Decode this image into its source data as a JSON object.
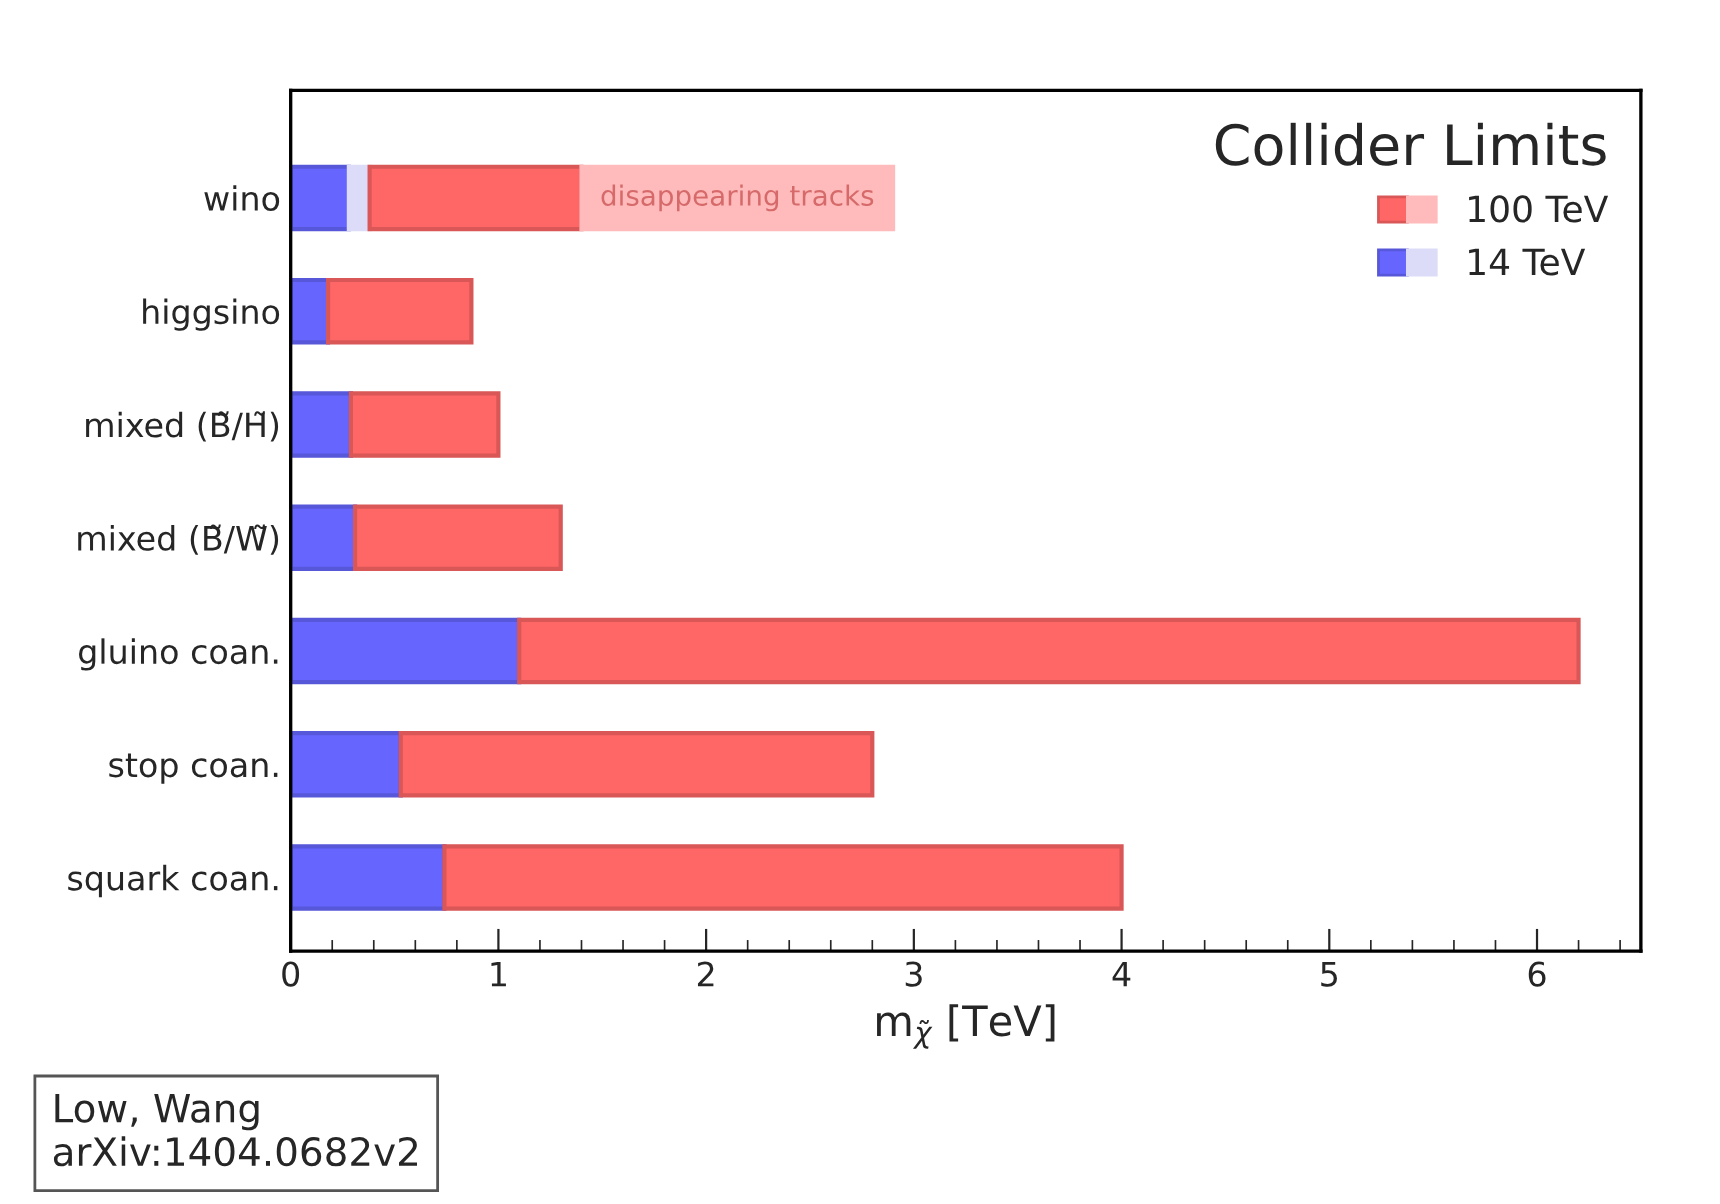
{
  "chart_data": {
    "type": "bar",
    "orientation": "horizontal",
    "stacked": true,
    "categories": [
      "wino",
      "higgsino",
      "mixed (B̃/H̃)",
      "mixed (B̃/W̃)",
      "gluino coan.",
      "stop coan.",
      "squark coan."
    ],
    "series": [
      {
        "name": "14 TeV",
        "color": "#6666ff",
        "values": [
          0.28,
          0.18,
          0.29,
          0.31,
          1.1,
          0.53,
          0.74
        ]
      },
      {
        "color": "#dcdcf8",
        "values": [
          0.1,
          null,
          null,
          null,
          null,
          null,
          null
        ]
      },
      {
        "name": "100 TeV",
        "color": "#ff6666",
        "values": [
          1.02,
          0.69,
          0.71,
          0.99,
          5.1,
          2.27,
          3.26
        ]
      },
      {
        "color": "#ffbbbb",
        "values": [
          1.5,
          null,
          null,
          null,
          null,
          null,
          null
        ]
      }
    ],
    "xlabel": "m$_{χ̃}$ [TeV]",
    "xlim": [
      0,
      6.5
    ],
    "xticks": [
      0,
      1,
      2,
      3,
      4,
      5,
      6
    ],
    "legend": "top right",
    "legend_title": "Collider Limits",
    "grid": false,
    "annotations": [
      "disappearing tracks",
      "Low, Wang",
      "arXiv:1404.0682v2"
    ]
  }
}
